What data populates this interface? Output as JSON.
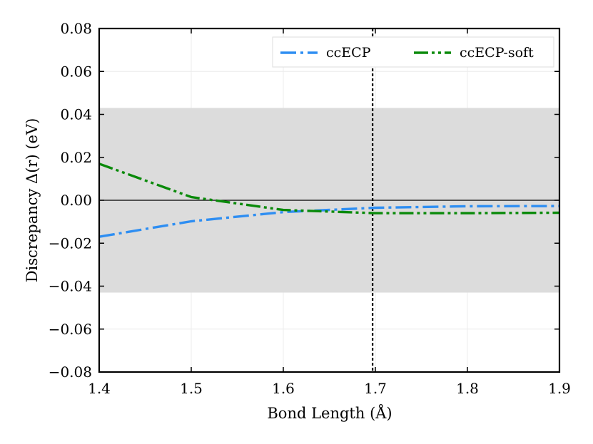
{
  "chart_data": {
    "type": "line",
    "xlabel": "Bond Length (Å)",
    "ylabel": "Discrepancy Δ(r) (eV)",
    "xlim": [
      1.4,
      1.9
    ],
    "ylim": [
      -0.08,
      0.08
    ],
    "xticks": [
      1.4,
      1.5,
      1.6,
      1.7,
      1.8,
      1.9
    ],
    "xtick_labels": [
      "1.4",
      "1.5",
      "1.6",
      "1.7",
      "1.8",
      "1.9"
    ],
    "yticks": [
      -0.08,
      -0.06,
      -0.04,
      -0.02,
      0.0,
      0.02,
      0.04,
      0.06,
      0.08
    ],
    "ytick_labels": [
      "−0.08",
      "−0.06",
      "−0.04",
      "−0.02",
      "0.00",
      "0.02",
      "0.04",
      "0.06",
      "0.08"
    ],
    "shaded_band": {
      "ymin": -0.043,
      "ymax": 0.043,
      "color": "#dcdcdc"
    },
    "zero_line": {
      "y": 0.0,
      "color": "#000000"
    },
    "vertical_line": {
      "x": 1.697,
      "style": "dotted",
      "color": "#000000"
    },
    "legend_position": "top-right",
    "grid": true,
    "series": [
      {
        "name": "ccECP",
        "color": "#2e8ef2",
        "style": "dashdot",
        "x": [
          1.4,
          1.5,
          1.6,
          1.7,
          1.8,
          1.9
        ],
        "y": [
          -0.017,
          -0.0098,
          -0.0055,
          -0.0035,
          -0.0028,
          -0.0027
        ]
      },
      {
        "name": "ccECP-soft",
        "color": "#0a8a0a",
        "style": "dashdotdot",
        "x": [
          1.4,
          1.5,
          1.6,
          1.7,
          1.8,
          1.9
        ],
        "y": [
          0.017,
          0.0015,
          -0.0045,
          -0.006,
          -0.006,
          -0.0058
        ]
      }
    ]
  }
}
